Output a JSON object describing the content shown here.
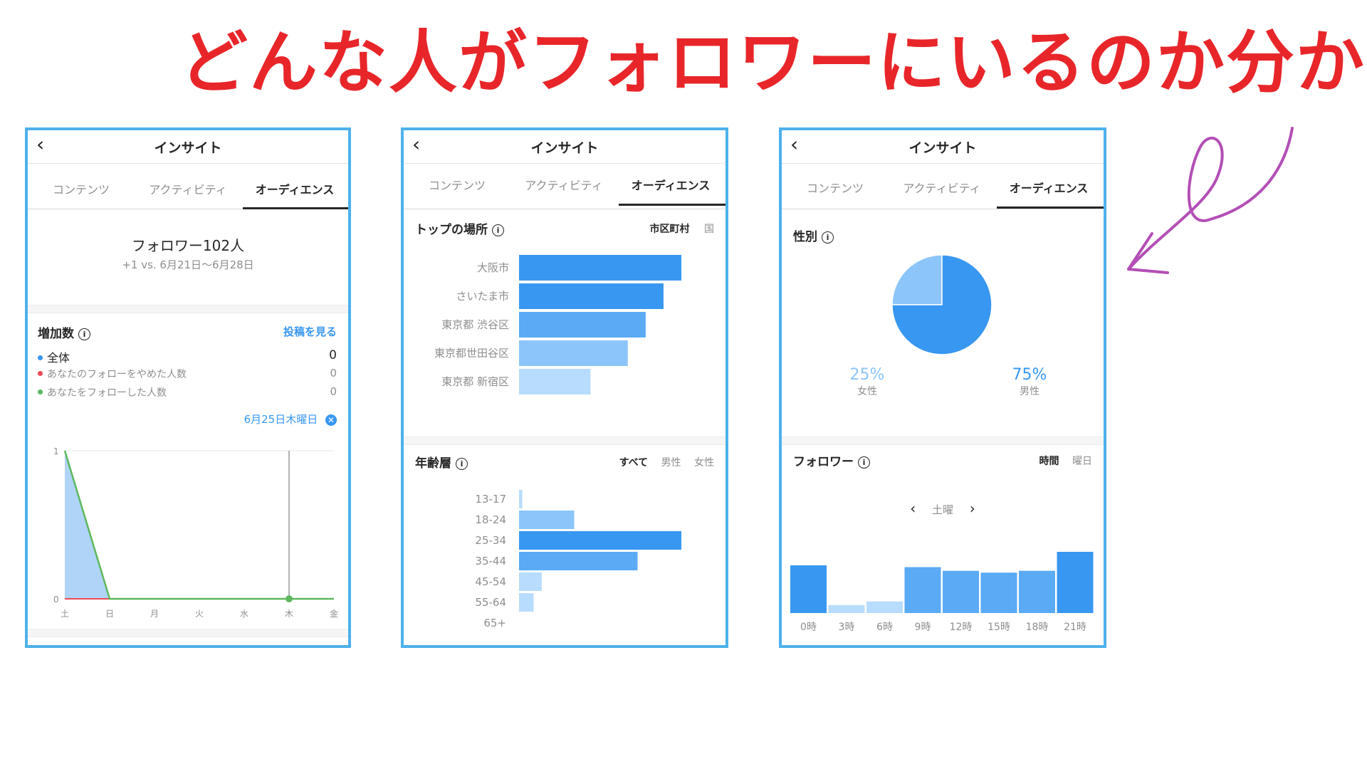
{
  "headline": "どんな人がフォロワーにいるのか分かる",
  "colors": {
    "headline": "#e8262a",
    "frame": "#4db1ec",
    "bar_dark": "#3897f0",
    "bar_mid": "#5aaaf5",
    "bar_light": "#8cc5fa",
    "bar_pale": "#b8dcfd",
    "arrow": "#b34fb6"
  },
  "common": {
    "title": "インサイト",
    "back_icon": "chevron-left-icon",
    "tabs": [
      "コンテンツ",
      "アクティビティ",
      "オーディエンス"
    ]
  },
  "panel1": {
    "followers": "フォロワー102人",
    "change": "+1 vs. 6月21日〜6月28日",
    "growth_title": "増加数",
    "see_posts": "投稿を見る",
    "legend": [
      {
        "label": "全体",
        "value": "0",
        "color": "#3897f0"
      },
      {
        "label": "あなたのフォローをやめた人数",
        "value": "0",
        "color": "#ed4956"
      },
      {
        "label": "あなたをフォローした人数",
        "value": "0",
        "color": "#5cb85c"
      }
    ],
    "selected_date": "6月25日木曜日",
    "y_labels": [
      "1",
      "0"
    ],
    "chart_data": {
      "type": "line",
      "x": [
        "土",
        "日",
        "月",
        "火",
        "水",
        "木",
        "金"
      ],
      "series": [
        {
          "values": [
            1,
            0,
            0,
            0,
            0,
            0,
            0
          ]
        }
      ],
      "ylim": [
        0,
        1
      ]
    }
  },
  "panel2": {
    "places_title": "トップの場所",
    "place_tabs": [
      "市区町村",
      "国"
    ],
    "places_chart": {
      "type": "bar",
      "categories": [
        "大阪市",
        "さいたま市",
        "東京都 渋谷区",
        "東京都世田谷区",
        "東京都 新宿区"
      ],
      "values": [
        100,
        89,
        78,
        67,
        44
      ]
    },
    "age_title": "年齢層",
    "age_tabs": [
      "すべて",
      "男性",
      "女性"
    ],
    "age_chart": {
      "type": "bar",
      "categories": [
        "13-17",
        "18-24",
        "25-34",
        "35-44",
        "45-54",
        "55-64",
        "65+"
      ],
      "values": [
        2,
        34,
        100,
        73,
        14,
        9,
        0
      ]
    }
  },
  "panel3": {
    "gender_title": "性別",
    "gender_chart": {
      "type": "pie",
      "categories": [
        "女性",
        "男性"
      ],
      "values": [
        25,
        75
      ]
    },
    "female_pct": "25%",
    "female_label": "女性",
    "male_pct": "75%",
    "male_label": "男性",
    "followers_title": "フォロワー",
    "time_tabs": [
      "時間",
      "曜日"
    ],
    "day": "土曜",
    "hour_chart": {
      "type": "bar",
      "categories": [
        "0時",
        "3時",
        "6時",
        "9時",
        "12時",
        "15時",
        "18時",
        "21時"
      ],
      "values": [
        78,
        13,
        19,
        75,
        69,
        66,
        69,
        100
      ]
    }
  }
}
